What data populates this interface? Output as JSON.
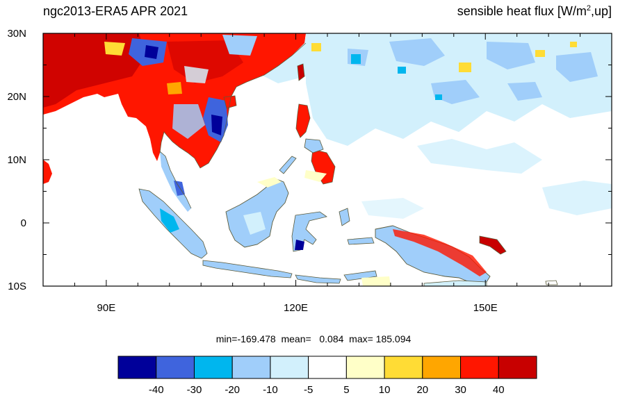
{
  "title_left": "ngc2013-ERA5  APR 2021",
  "title_right_prefix": "sensible heat flux [W/m",
  "title_right_sup": "2",
  "title_right_suffix": ",up]",
  "map": {
    "lon_range": [
      80,
      170
    ],
    "lat_range": [
      -10,
      30
    ],
    "lon_ticks": [
      {
        "value": 90,
        "label": "90E"
      },
      {
        "value": 120,
        "label": "120E"
      },
      {
        "value": 150,
        "label": "150E"
      }
    ],
    "lat_ticks": [
      {
        "value": 30,
        "label": "30N"
      },
      {
        "value": 20,
        "label": "20N"
      },
      {
        "value": 10,
        "label": "10N"
      },
      {
        "value": 0,
        "label": "0"
      },
      {
        "value": -10,
        "label": "10S"
      }
    ],
    "ocean_color": "#ffffff",
    "coastline_color": "#5a5a3a"
  },
  "stats": {
    "text": "min=-169.478  mean=   0.084  max= 185.094",
    "min": -169.478,
    "mean": 0.084,
    "max": 185.094
  },
  "colorbar": {
    "colors": [
      "#00009a",
      "#3f64dd",
      "#00b6ee",
      "#a0cefa",
      "#d2f0fc",
      "#ffffff",
      "#ffffc8",
      "#ffdc35",
      "#ffa600",
      "#ff1600",
      "#c80000"
    ],
    "labels": [
      "-40",
      "-30",
      "-20",
      "-10",
      "-5",
      "5",
      "10",
      "20",
      "30",
      "40"
    ]
  }
}
